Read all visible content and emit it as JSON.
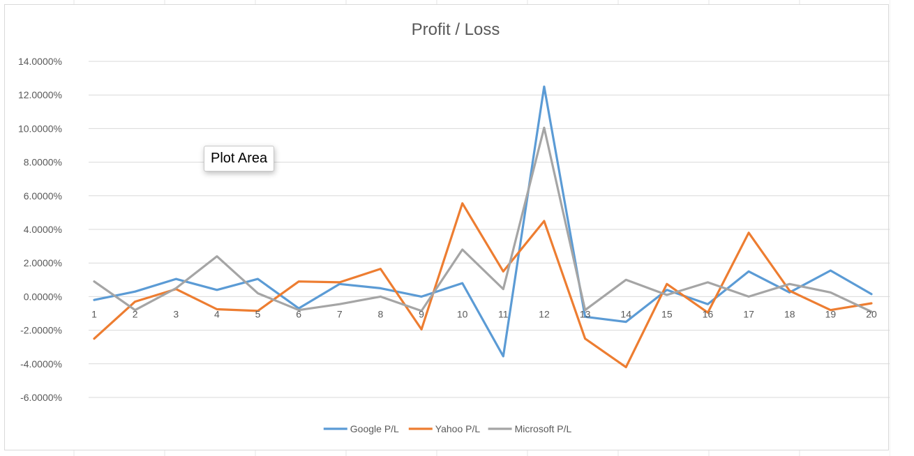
{
  "tooltip": "Plot Area",
  "chart_data": {
    "type": "line",
    "title": "Profit / Loss",
    "xlabel": "",
    "ylabel": "",
    "categories": [
      "1",
      "2",
      "3",
      "4",
      "5",
      "6",
      "7",
      "8",
      "9",
      "10",
      "11",
      "12",
      "13",
      "14",
      "15",
      "16",
      "17",
      "18",
      "19",
      "20"
    ],
    "ylim": [
      -0.06,
      0.14
    ],
    "yticks": [
      "14.0000%",
      "12.0000%",
      "10.0000%",
      "8.0000%",
      "6.0000%",
      "4.0000%",
      "2.0000%",
      "0.0000%",
      "-2.0000%",
      "-4.0000%",
      "-6.0000%"
    ],
    "grid": true,
    "legend_position": "bottom",
    "series": [
      {
        "name": "Google P/L",
        "color": "#5b9bd5",
        "values": [
          -0.002,
          0.003,
          0.0105,
          0.004,
          0.0105,
          -0.007,
          0.0075,
          0.005,
          0.0,
          0.008,
          -0.0355,
          0.125,
          -0.012,
          -0.015,
          0.004,
          -0.0045,
          0.015,
          0.0025,
          0.0155,
          0.0015
        ]
      },
      {
        "name": "Yahoo P/L",
        "color": "#ed7d31",
        "values": [
          -0.025,
          -0.003,
          0.0045,
          -0.0075,
          -0.0085,
          0.009,
          0.0085,
          0.0165,
          -0.0195,
          0.0555,
          0.015,
          0.045,
          -0.025,
          -0.042,
          0.0075,
          -0.0095,
          0.038,
          0.0035,
          -0.008,
          -0.004
        ]
      },
      {
        "name": "Microsoft P/L",
        "color": "#a5a5a5",
        "values": [
          0.009,
          -0.008,
          0.005,
          0.024,
          0.002,
          -0.008,
          -0.0045,
          0.0,
          -0.0085,
          0.028,
          0.0045,
          0.1005,
          -0.008,
          0.01,
          0.001,
          0.0085,
          0.0,
          0.0075,
          0.0025,
          -0.009
        ]
      }
    ]
  }
}
